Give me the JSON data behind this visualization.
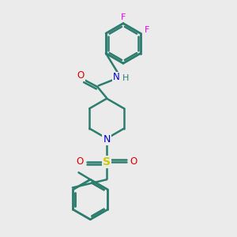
{
  "bg_color": "#ebebeb",
  "bond_color": "#2d7d6e",
  "bond_width": 1.8,
  "atom_colors": {
    "N_amide": "#0000cc",
    "N_pip": "#0000cc",
    "O_carbonyl": "#dd0000",
    "O_sulfonyl": "#dd0000",
    "S": "#cccc00",
    "F": "#ee00ee",
    "C": "#2d7d6e"
  },
  "figsize": [
    3.0,
    3.0
  ],
  "dpi": 100,
  "xlim": [
    0,
    10
  ],
  "ylim": [
    0,
    10
  ]
}
